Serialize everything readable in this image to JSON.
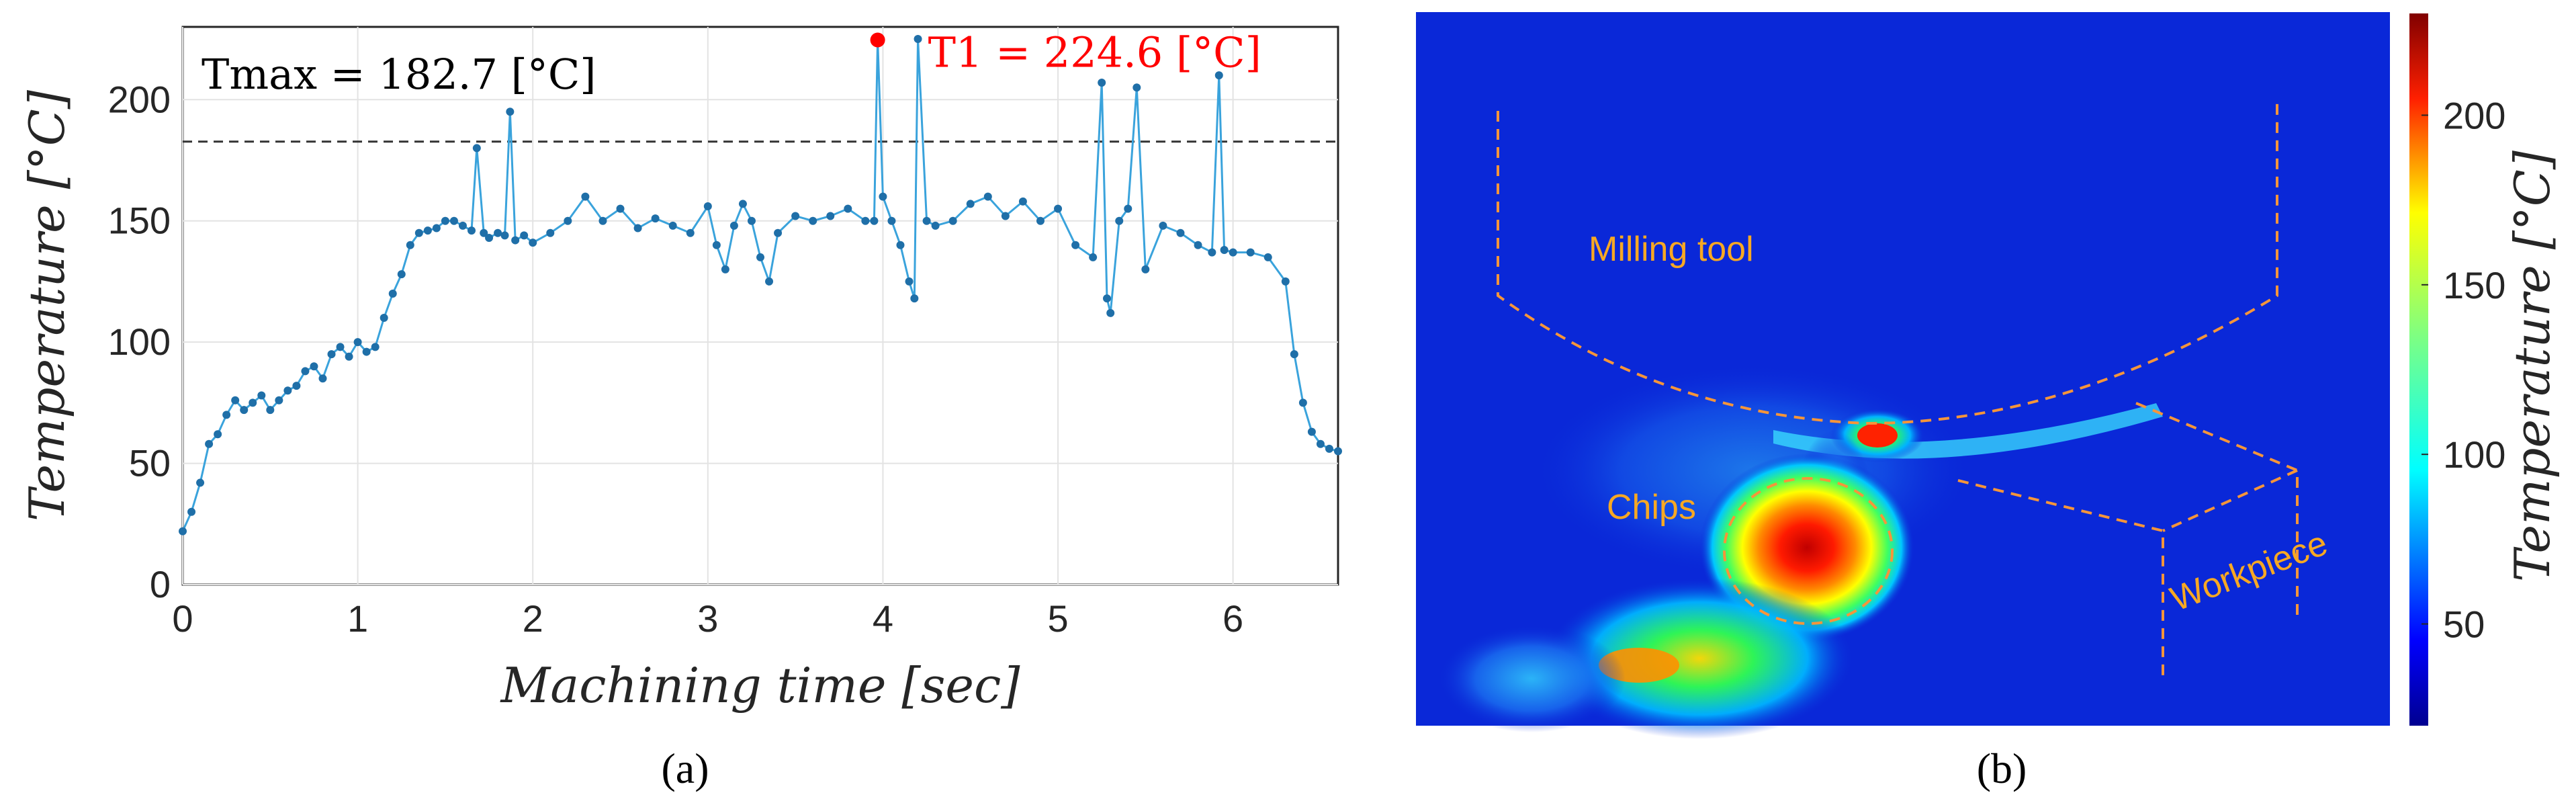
{
  "chart_data": [
    {
      "type": "line",
      "panel_label": "(a)",
      "xlabel": "Machining time [sec]",
      "ylabel": "Temperature [°C]",
      "xlim": [
        0,
        6.6
      ],
      "ylim": [
        0,
        230
      ],
      "xticks": [
        0,
        1,
        2,
        3,
        4,
        5,
        6
      ],
      "yticks": [
        0,
        50,
        100,
        150,
        200
      ],
      "grid": true,
      "threshold": {
        "value": 182.7,
        "label": "Tmax = 182.7 [°C]"
      },
      "peak": {
        "x": 3.97,
        "y": 224.6,
        "label": "T1 = 224.6 [°C]"
      },
      "series": [
        {
          "name": "Temperature",
          "color": "#1f6fa8",
          "x": [
            0.0,
            0.05,
            0.1,
            0.15,
            0.2,
            0.25,
            0.3,
            0.35,
            0.4,
            0.45,
            0.5,
            0.55,
            0.6,
            0.65,
            0.7,
            0.75,
            0.8,
            0.85,
            0.9,
            0.95,
            1.0,
            1.05,
            1.1,
            1.15,
            1.2,
            1.25,
            1.3,
            1.35,
            1.4,
            1.45,
            1.5,
            1.55,
            1.6,
            1.65,
            1.68,
            1.72,
            1.75,
            1.8,
            1.84,
            1.87,
            1.9,
            1.95,
            2.0,
            2.1,
            2.2,
            2.3,
            2.4,
            2.5,
            2.6,
            2.7,
            2.8,
            2.9,
            3.0,
            3.05,
            3.1,
            3.15,
            3.2,
            3.25,
            3.3,
            3.35,
            3.4,
            3.5,
            3.6,
            3.7,
            3.8,
            3.9,
            3.95,
            3.97,
            4.0,
            4.05,
            4.1,
            4.15,
            4.18,
            4.2,
            4.25,
            4.3,
            4.4,
            4.5,
            4.6,
            4.7,
            4.8,
            4.9,
            5.0,
            5.1,
            5.2,
            5.25,
            5.28,
            5.3,
            5.35,
            5.4,
            5.45,
            5.5,
            5.6,
            5.7,
            5.8,
            5.88,
            5.92,
            5.95,
            6.0,
            6.1,
            6.2,
            6.3,
            6.35,
            6.4,
            6.45,
            6.5,
            6.55,
            6.6
          ],
          "y": [
            22,
            30,
            42,
            58,
            62,
            70,
            76,
            72,
            75,
            78,
            72,
            76,
            80,
            82,
            88,
            90,
            85,
            95,
            98,
            94,
            100,
            96,
            98,
            110,
            120,
            128,
            140,
            145,
            146,
            147,
            150,
            150,
            148,
            146,
            180,
            145,
            143,
            145,
            144,
            195,
            142,
            144,
            141,
            145,
            150,
            160,
            150,
            155,
            147,
            151,
            148,
            145,
            156,
            140,
            130,
            148,
            157,
            150,
            135,
            125,
            145,
            152,
            150,
            152,
            155,
            150,
            150,
            224.6,
            160,
            150,
            140,
            125,
            118,
            225,
            150,
            148,
            150,
            157,
            160,
            152,
            158,
            150,
            155,
            140,
            135,
            207,
            118,
            112,
            150,
            155,
            205,
            130,
            148,
            145,
            140,
            137,
            210,
            138,
            137,
            137,
            135,
            125,
            95,
            75,
            63,
            58,
            56,
            55
          ]
        }
      ]
    },
    {
      "type": "heatmap",
      "panel_label": "(b)",
      "colorbar": {
        "label": "Temperature [°C]",
        "range": [
          20,
          230
        ],
        "ticks": [
          50,
          100,
          150,
          200
        ]
      },
      "annotations": [
        "Milling tool",
        "Chips",
        "Workpiece"
      ]
    }
  ]
}
